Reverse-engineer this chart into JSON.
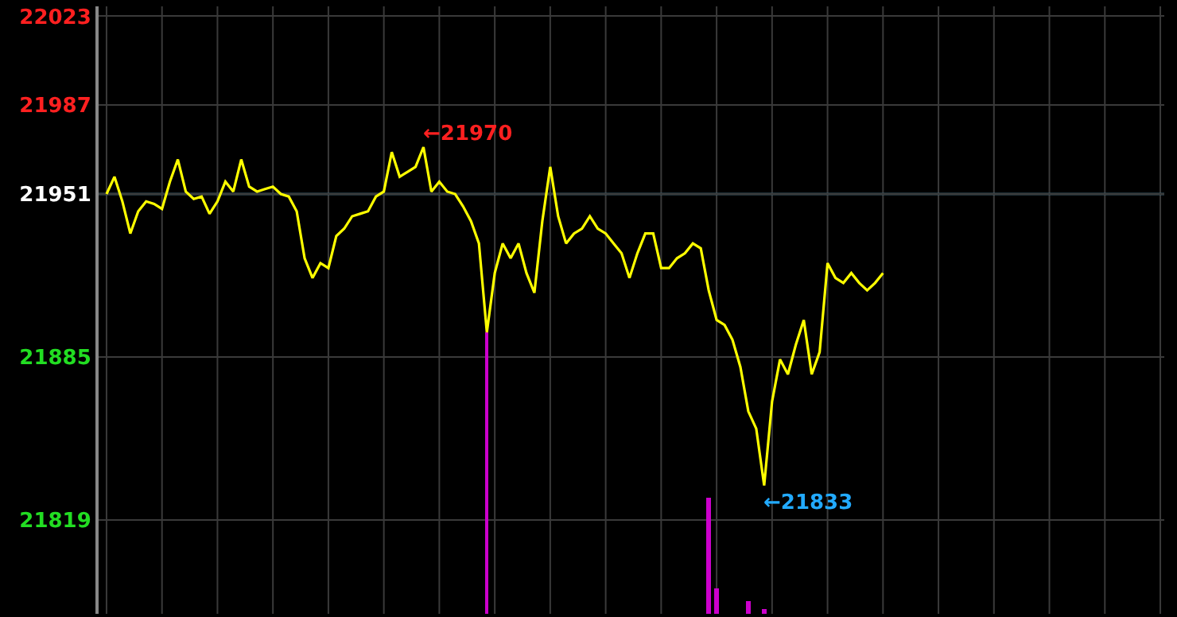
{
  "chart_data": {
    "type": "line",
    "categories": [
      null,
      null,
      null,
      null,
      null,
      null,
      null,
      null,
      null,
      null,
      null,
      null,
      null,
      null,
      null,
      null,
      null,
      null,
      null,
      null,
      null,
      null,
      null,
      null,
      null,
      null,
      null,
      null,
      null,
      null,
      null,
      null,
      null,
      null,
      null,
      null,
      null,
      null,
      null,
      null,
      null,
      null,
      null,
      null,
      null,
      null,
      null,
      null,
      null,
      null,
      null,
      null,
      null,
      null,
      null,
      null,
      null,
      null,
      null,
      null,
      null,
      null,
      null,
      null,
      null,
      null,
      null,
      null,
      null,
      null,
      null,
      null,
      null,
      null,
      null,
      null,
      null,
      null,
      null,
      null,
      null,
      null,
      null,
      null,
      null,
      null,
      null,
      null,
      null,
      null,
      null,
      null,
      null,
      null,
      null,
      null,
      null,
      null,
      null,
      null,
      null,
      null,
      null,
      null,
      null,
      null,
      null,
      null,
      null,
      null,
      null,
      null,
      null,
      null,
      null,
      null,
      null,
      null,
      null,
      null,
      null,
      null,
      null,
      null,
      null,
      null,
      null,
      null,
      null,
      null,
      null,
      null,
      null,
      null
    ],
    "series": [
      {
        "color": "#ffff00",
        "values": [
          21951,
          21958,
          21948,
          21935,
          21944,
          21948,
          21947,
          21945,
          21956,
          21965,
          21952,
          21949,
          21950,
          21943,
          21948,
          21956,
          21952,
          21965,
          21954,
          21952,
          21953,
          21954,
          21951,
          21950,
          21944,
          21925,
          21917,
          21923,
          21921,
          21934,
          21937,
          21942,
          21943,
          21944,
          21950,
          21952,
          21968,
          21958,
          21960,
          21962,
          21970,
          21952,
          21956,
          21952,
          21951,
          21946,
          21940,
          21931,
          21895,
          21919,
          21931,
          21925,
          21931,
          21919,
          21911,
          21940,
          21962,
          21942,
          21931,
          21935,
          21937,
          21942,
          21937,
          21935,
          21931,
          21927,
          21917,
          21927,
          21935,
          21935,
          21921,
          21921,
          21925,
          21927,
          21931,
          21929,
          21912,
          21900,
          21898,
          21892,
          21881,
          21863,
          21856,
          21833,
          21867,
          21884,
          21878,
          21890,
          21900,
          21878,
          21887,
          21923,
          21917,
          21915,
          21919,
          21915,
          21912,
          21915,
          21919,
          null,
          null,
          null,
          null,
          null,
          null,
          null,
          null,
          null,
          null,
          null,
          null,
          null,
          null,
          null,
          null,
          null,
          null,
          null,
          null,
          null,
          null,
          null,
          null,
          null,
          null,
          null,
          null,
          null,
          null,
          null,
          null,
          null,
          null,
          null
        ]
      },
      {
        "type": "bar",
        "color": "#cc00cc",
        "values": [
          null,
          null,
          null,
          null,
          null,
          null,
          null,
          null,
          null,
          null,
          null,
          null,
          null,
          null,
          null,
          null,
          null,
          null,
          null,
          null,
          null,
          null,
          null,
          null,
          null,
          null,
          null,
          null,
          null,
          null,
          null,
          null,
          null,
          null,
          null,
          null,
          null,
          null,
          null,
          null,
          null,
          null,
          null,
          null,
          null,
          null,
          null,
          null,
          21895,
          null,
          null,
          null,
          null,
          null,
          null,
          null,
          null,
          null,
          null,
          null,
          null,
          null,
          null,
          null,
          null,
          null,
          null,
          null,
          null,
          null,
          null,
          null,
          null,
          null,
          null,
          null,
          21828,
          21791,
          null,
          null,
          null,
          21786,
          null,
          21783,
          null,
          null,
          null,
          null,
          null,
          null,
          null,
          null,
          null,
          null,
          null,
          null,
          null,
          null,
          null,
          null,
          null,
          null,
          null,
          null,
          null,
          null,
          null,
          null,
          null,
          null,
          null,
          null,
          null,
          null,
          null,
          null,
          null,
          null,
          null,
          null,
          null,
          null,
          null,
          null,
          null,
          null,
          null,
          null,
          null,
          null,
          null,
          null,
          null,
          null
        ]
      }
    ],
    "ylim": [
      21781,
      22027
    ],
    "yticks": [
      21819,
      21885,
      21951,
      21987,
      22023
    ],
    "ref_lines": [
      {
        "axis": "y",
        "value": 21951,
        "color": "#3d5f6e"
      }
    ],
    "annotations": [
      "←21970",
      "←21833"
    ],
    "grid": true
  }
}
